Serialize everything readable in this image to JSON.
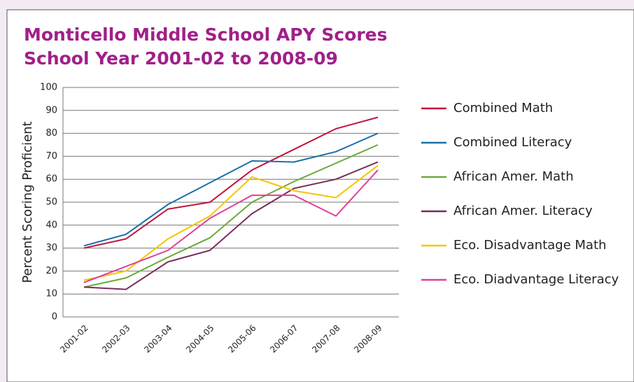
{
  "chart_data": {
    "type": "line",
    "title": [
      "Monticello Middle School APY Scores",
      "School Year 2001-02 to 2008-09"
    ],
    "y_label": "Percent Scoring Proficient",
    "categories": [
      "2001-02",
      "2002-03",
      "2003-04",
      "2004-05",
      "2005-06",
      "2006-07",
      "2007-08",
      "2008-09"
    ],
    "series": [
      {
        "name": "Combined Math",
        "color": "#c0143c",
        "values": [
          30,
          34,
          47,
          50,
          64,
          73,
          82,
          87
        ]
      },
      {
        "name": "Combined Literacy",
        "color": "#1a6fa8",
        "values": [
          31,
          36,
          49,
          58.5,
          68,
          67.5,
          72,
          80
        ]
      },
      {
        "name": "African Amer. Math",
        "color": "#6aaa3a",
        "values": [
          13,
          17,
          26,
          34.5,
          50,
          59,
          67,
          75
        ]
      },
      {
        "name": "African Amer. Literacy",
        "color": "#7b2a5a",
        "values": [
          13,
          12,
          24,
          29,
          45,
          56,
          60,
          67.5
        ]
      },
      {
        "name": "Eco. Disadvantage Math",
        "color": "#f5c400",
        "values": [
          16,
          20,
          34,
          44,
          61,
          55,
          52,
          66
        ]
      },
      {
        "name": "Eco. Diadvantage Literacy",
        "color": "#e0409a",
        "values": [
          15,
          22,
          29,
          43,
          53,
          53,
          44,
          64
        ]
      }
    ],
    "ylim": [
      0,
      100
    ],
    "yticks": [
      0,
      10,
      20,
      30,
      40,
      50,
      60,
      70,
      80,
      90,
      100
    ],
    "grid": true,
    "legend": "right"
  }
}
